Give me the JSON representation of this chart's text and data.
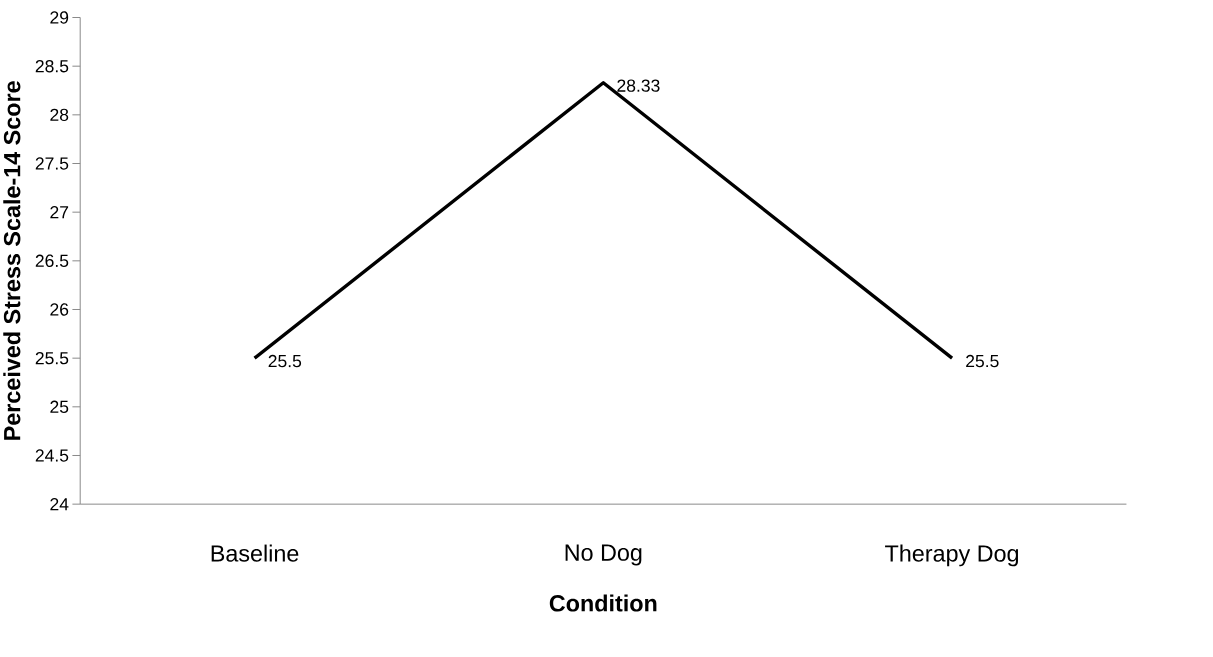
{
  "chart_data": {
    "type": "line",
    "xlabel": "Condition",
    "ylabel": "Perceived Stress Scale-14 Score",
    "categories": [
      "Baseline",
      "No Dog",
      "Therapy Dog"
    ],
    "values": [
      25.5,
      28.33,
      25.5
    ],
    "color": "#000000",
    "ylim": [
      24,
      29
    ],
    "yticks": [
      24,
      24.5,
      25,
      25.5,
      26,
      26.5,
      27,
      27.5,
      28,
      28.5,
      29
    ],
    "data_labels": true
  }
}
